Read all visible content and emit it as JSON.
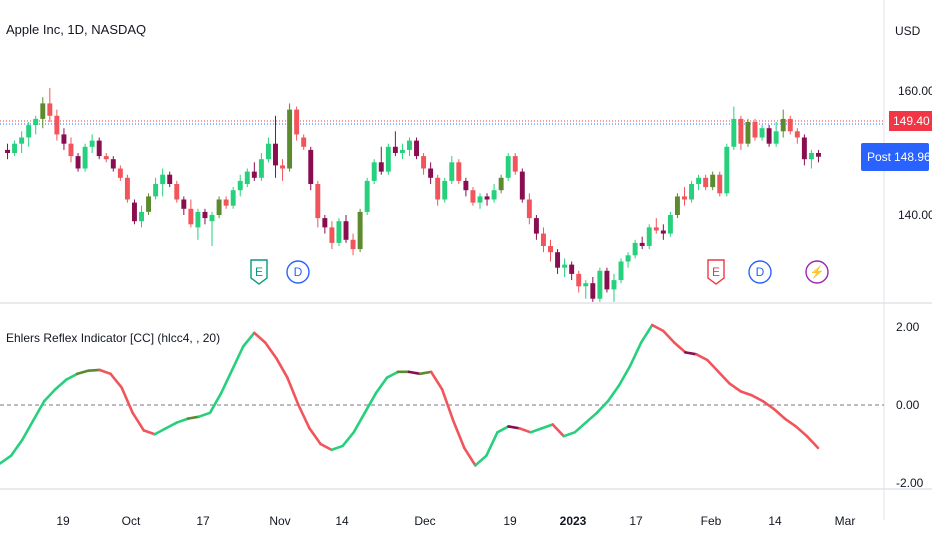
{
  "symbol_title": "Apple Inc, 1D, NASDAQ",
  "currency": "USD",
  "price_scale_labels": [
    "160.00",
    "140.00"
  ],
  "last_price": "149.40",
  "post_label": "Post",
  "post_price": "148.96",
  "indicator": {
    "title": "Ehlers Reflex Indicator [CC] (hlcc4, , 20)",
    "scale_labels": [
      "2.00",
      "0.00",
      "-2.00"
    ]
  },
  "time_axis": [
    "19",
    "Oct",
    "17",
    "Nov",
    "14",
    "Dec",
    "19",
    "2023",
    "17",
    "Feb",
    "14",
    "Mar"
  ],
  "events": [
    {
      "label": "E",
      "kind": "earnings"
    },
    {
      "label": "D",
      "kind": "dividend"
    },
    {
      "label": "E",
      "kind": "earnings"
    },
    {
      "label": "D",
      "kind": "dividend"
    },
    {
      "label": "⚡",
      "kind": "split"
    }
  ],
  "colors": {
    "up": "#26d07c",
    "down": "#f2545b",
    "up_dark": "#5c8a2e",
    "down_dark": "#880e4f",
    "post_badge": "#2962ff",
    "price_badge": "#f23645"
  },
  "chart_data": {
    "type": "candlestick",
    "ylim": [
      130,
      165
    ],
    "candles": [
      [
        150.5,
        151.5,
        149.0,
        150.0
      ],
      [
        150.0,
        152.0,
        149.5,
        151.5
      ],
      [
        151.5,
        153.5,
        150.0,
        152.5
      ],
      [
        152.5,
        155.0,
        151.0,
        154.5
      ],
      [
        154.5,
        156.0,
        153.0,
        155.5
      ],
      [
        155.5,
        159.0,
        154.0,
        158.0
      ],
      [
        158.0,
        160.5,
        155.0,
        156.0
      ],
      [
        156.0,
        157.0,
        152.0,
        153.0
      ],
      [
        153.0,
        154.0,
        150.5,
        151.5
      ],
      [
        151.5,
        152.5,
        148.5,
        149.5
      ],
      [
        149.5,
        150.0,
        147.0,
        147.5
      ],
      [
        147.5,
        151.5,
        147.0,
        151.0
      ],
      [
        151.0,
        153.0,
        150.0,
        152.0
      ],
      [
        152.0,
        152.5,
        149.0,
        149.5
      ],
      [
        149.5,
        150.0,
        148.5,
        149.0
      ],
      [
        149.0,
        149.5,
        147.0,
        147.5
      ],
      [
        147.5,
        148.0,
        145.5,
        146.0
      ],
      [
        146.0,
        146.5,
        142.0,
        142.5
      ],
      [
        142.0,
        142.5,
        138.5,
        139.0
      ],
      [
        139.0,
        141.5,
        138.0,
        140.5
      ],
      [
        140.5,
        143.5,
        140.0,
        143.0
      ],
      [
        143.0,
        146.0,
        142.5,
        145.0
      ],
      [
        145.0,
        147.5,
        143.0,
        146.5
      ],
      [
        146.5,
        147.0,
        144.5,
        145.0
      ],
      [
        145.0,
        145.5,
        142.0,
        142.5
      ],
      [
        142.5,
        143.0,
        140.0,
        141.0
      ],
      [
        141.0,
        142.5,
        138.0,
        138.5
      ],
      [
        138.0,
        141.0,
        136.0,
        140.5
      ],
      [
        140.5,
        141.0,
        138.5,
        139.5
      ],
      [
        139.0,
        140.5,
        135.0,
        140.0
      ],
      [
        140.0,
        143.0,
        139.5,
        142.5
      ],
      [
        142.5,
        143.0,
        141.0,
        141.5
      ],
      [
        141.5,
        144.5,
        141.0,
        144.0
      ],
      [
        144.0,
        146.5,
        143.0,
        145.5
      ],
      [
        145.0,
        147.5,
        144.5,
        147.0
      ],
      [
        147.0,
        148.5,
        145.5,
        146.0
      ],
      [
        146.0,
        150.0,
        145.5,
        149.0
      ],
      [
        149.0,
        152.5,
        148.5,
        151.5
      ],
      [
        151.5,
        156.0,
        146.0,
        148.0
      ],
      [
        148.0,
        149.0,
        145.5,
        147.5
      ],
      [
        147.5,
        158.0,
        147.0,
        157.0
      ],
      [
        157.0,
        157.5,
        152.0,
        153.0
      ],
      [
        152.5,
        153.0,
        150.5,
        151.0
      ],
      [
        150.5,
        151.0,
        144.0,
        145.0
      ],
      [
        145.0,
        145.5,
        138.0,
        139.5
      ],
      [
        139.5,
        140.0,
        137.0,
        138.0
      ],
      [
        138.0,
        139.0,
        134.5,
        135.5
      ],
      [
        135.5,
        139.5,
        135.0,
        139.0
      ],
      [
        139.0,
        140.0,
        135.5,
        136.0
      ],
      [
        136.0,
        137.0,
        133.5,
        134.5
      ],
      [
        134.5,
        141.0,
        134.0,
        140.5
      ],
      [
        140.5,
        146.0,
        140.0,
        145.5
      ],
      [
        145.5,
        149.0,
        145.0,
        148.5
      ],
      [
        148.5,
        151.0,
        146.5,
        147.0
      ],
      [
        147.0,
        151.5,
        146.5,
        151.0
      ],
      [
        151.0,
        153.5,
        149.5,
        150.0
      ],
      [
        150.0,
        151.5,
        149.0,
        150.5
      ],
      [
        150.5,
        152.5,
        149.5,
        152.0
      ],
      [
        152.0,
        152.5,
        149.0,
        149.5
      ],
      [
        149.5,
        150.0,
        146.5,
        147.5
      ],
      [
        147.5,
        148.5,
        145.0,
        146.0
      ],
      [
        146.0,
        146.5,
        141.5,
        142.5
      ],
      [
        142.5,
        146.0,
        142.0,
        145.5
      ],
      [
        145.5,
        149.5,
        145.0,
        148.5
      ],
      [
        148.5,
        149.0,
        145.0,
        145.5
      ],
      [
        145.5,
        146.0,
        143.0,
        144.0
      ],
      [
        144.0,
        144.5,
        141.5,
        142.0
      ],
      [
        142.0,
        143.5,
        141.0,
        143.0
      ],
      [
        143.0,
        143.5,
        141.5,
        142.5
      ],
      [
        142.5,
        145.0,
        142.0,
        144.0
      ],
      [
        144.0,
        146.5,
        143.5,
        146.0
      ],
      [
        146.0,
        150.0,
        145.5,
        149.5
      ],
      [
        149.5,
        150.0,
        146.5,
        147.0
      ],
      [
        147.0,
        147.5,
        142.0,
        142.5
      ],
      [
        142.5,
        143.5,
        138.5,
        139.5
      ],
      [
        139.5,
        140.0,
        136.0,
        137.0
      ],
      [
        137.0,
        138.0,
        134.0,
        135.0
      ],
      [
        135.0,
        136.0,
        132.5,
        134.0
      ],
      [
        134.0,
        134.5,
        130.5,
        131.5
      ],
      [
        131.5,
        133.0,
        130.0,
        132.0
      ],
      [
        132.0,
        132.5,
        129.5,
        130.5
      ],
      [
        130.5,
        131.0,
        127.5,
        128.5
      ],
      [
        128.5,
        129.5,
        126.5,
        129.0
      ],
      [
        129.0,
        130.0,
        126.0,
        126.5
      ],
      [
        126.5,
        131.5,
        126.0,
        131.0
      ],
      [
        131.0,
        131.5,
        127.5,
        128.0
      ],
      [
        128.0,
        130.5,
        126.0,
        129.5
      ],
      [
        129.5,
        133.0,
        129.0,
        132.5
      ],
      [
        132.5,
        134.0,
        131.5,
        133.5
      ],
      [
        133.5,
        136.0,
        133.0,
        135.5
      ],
      [
        135.5,
        136.5,
        134.5,
        135.0
      ],
      [
        135.0,
        138.5,
        134.5,
        138.0
      ],
      [
        138.0,
        139.5,
        137.0,
        137.5
      ],
      [
        137.5,
        138.5,
        136.0,
        137.0
      ],
      [
        137.0,
        140.5,
        136.5,
        140.0
      ],
      [
        140.0,
        143.5,
        139.5,
        143.0
      ],
      [
        143.0,
        144.5,
        141.5,
        142.5
      ],
      [
        142.5,
        145.5,
        142.0,
        145.0
      ],
      [
        145.0,
        146.5,
        144.0,
        146.0
      ],
      [
        146.0,
        146.5,
        144.0,
        144.5
      ],
      [
        144.5,
        147.0,
        144.0,
        146.5
      ],
      [
        146.5,
        147.0,
        143.0,
        143.5
      ],
      [
        143.5,
        151.5,
        143.0,
        151.0
      ],
      [
        151.0,
        157.5,
        150.5,
        155.5
      ],
      [
        155.5,
        156.0,
        150.5,
        151.5
      ],
      [
        151.5,
        155.5,
        151.0,
        155.0
      ],
      [
        155.0,
        155.5,
        152.0,
        152.5
      ],
      [
        152.5,
        154.5,
        152.0,
        154.0
      ],
      [
        154.0,
        154.5,
        151.0,
        151.5
      ],
      [
        151.5,
        155.0,
        151.0,
        153.5
      ],
      [
        153.5,
        157.0,
        152.5,
        155.5
      ],
      [
        155.5,
        156.0,
        153.0,
        153.5
      ],
      [
        153.5,
        154.0,
        151.5,
        152.5
      ],
      [
        152.5,
        153.0,
        148.0,
        149.0
      ],
      [
        149.0,
        150.5,
        147.5,
        150.0
      ],
      [
        150.0,
        150.5,
        148.5,
        149.4
      ]
    ],
    "reflex_series": [
      -1.5,
      -1.3,
      -0.9,
      -0.4,
      0.1,
      0.4,
      0.65,
      0.8,
      0.88,
      0.9,
      0.8,
      0.45,
      -0.2,
      -0.65,
      -0.75,
      -0.6,
      -0.45,
      -0.35,
      -0.3,
      -0.2,
      0.3,
      0.9,
      1.5,
      1.85,
      1.6,
      1.2,
      0.7,
      0.0,
      -0.6,
      -1.0,
      -1.15,
      -1.05,
      -0.7,
      -0.2,
      0.3,
      0.7,
      0.85,
      0.85,
      0.8,
      0.85,
      0.4,
      -0.4,
      -1.1,
      -1.55,
      -1.3,
      -0.7,
      -0.55,
      -0.6,
      -0.7,
      -0.6,
      -0.5,
      -0.8,
      -0.7,
      -0.45,
      -0.2,
      0.1,
      0.5,
      1.0,
      1.6,
      2.05,
      1.9,
      1.6,
      1.35,
      1.3,
      1.15,
      0.85,
      0.55,
      0.35,
      0.25,
      0.1,
      -0.1,
      -0.35,
      -0.55,
      -0.8,
      -1.1
    ],
    "reflex_ylim": [
      -2.2,
      2.2
    ]
  }
}
